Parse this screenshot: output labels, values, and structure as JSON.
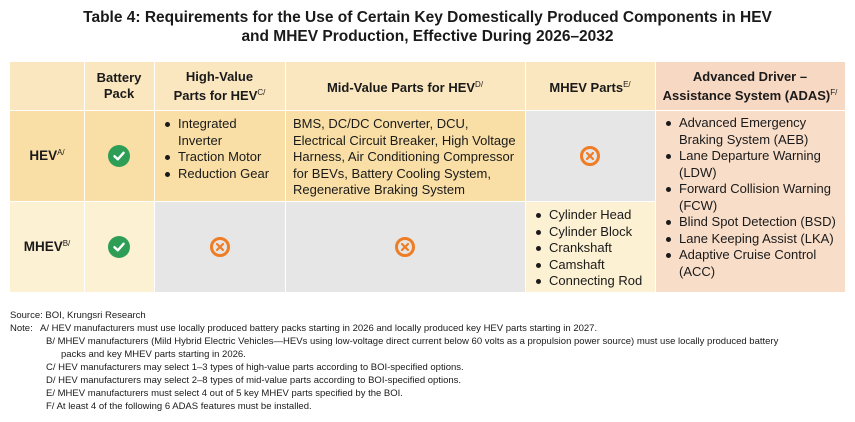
{
  "title": {
    "line1": "Table 4: Requirements for the Use of Certain Key Domestically Produced Components in HEV",
    "line2": "and MHEV Production, Effective During 2026–2032"
  },
  "headers": {
    "battery": "Battery Pack",
    "high_value": "High-Value Parts for HEV",
    "high_value_sup": "C/",
    "mid_value": "Mid-Value Parts for HEV",
    "mid_value_sup": "D/",
    "mhev_parts": "MHEV Parts",
    "mhev_parts_sup": "E/",
    "adas_line1": "Advanced Driver –",
    "adas_line2": "Assistance System (ADAS)",
    "adas_sup": "F/"
  },
  "rows": {
    "hev": {
      "label": "HEV",
      "sup": "A/"
    },
    "mhev": {
      "label": "MHEV",
      "sup": "B/"
    }
  },
  "cells": {
    "hev_high_value": [
      "Integrated Inverter",
      "Traction Motor",
      "Reduction Gear"
    ],
    "hev_mid_value": "BMS, DC/DC Converter, DCU, Electrical Circuit Breaker, High Voltage Harness, Air Conditioning Compressor for BEVs, Battery Cooling System, Regenerative Braking System",
    "mhev_parts": [
      "Cylinder Head",
      "Cylinder Block",
      "Crankshaft",
      "Camshaft",
      "Connecting Rod"
    ],
    "adas": [
      "Advanced Emergency Braking System (AEB)",
      "Lane Departure Warning (LDW)",
      "Forward Collision Warning (FCW)",
      "Blind Spot Detection (BSD)",
      "Lane Keeping Assist (LKA)",
      "Adaptive Cruise Control (ACC)"
    ]
  },
  "icons": {
    "check": "check-circle-icon",
    "cross": "x-circle-icon"
  },
  "colors": {
    "header_fill": "#fbe7bf",
    "hev_fill": "#f9dfa6",
    "mhev_fill": "#fdf1d3",
    "adas_fill": "#f8ddc9",
    "adas_header_fill": "#f7d8c3",
    "mhev_gray": "#e6e6e6",
    "check_green": "#2e9e56",
    "cross_orange": "#ee7d26"
  },
  "source": "Source: BOI, Krungsri Research",
  "notes_label": "Note:",
  "notes": [
    {
      "key": "A/",
      "text": "HEV manufacturers must use locally produced battery packs starting in 2026 and locally produced key HEV parts starting in 2027."
    },
    {
      "key": "B/",
      "text": "MHEV manufacturers (Mild Hybrid Electric Vehicles—HEVs using low-voltage direct current below 60 volts as a propulsion power source) must use locally produced battery",
      "cont": "packs and key MHEV parts starting in 2026."
    },
    {
      "key": "C/",
      "text": "HEV manufacturers may select 1–3 types of high-value parts according to BOI-specified options."
    },
    {
      "key": "D/",
      "text": "HEV manufacturers may select 2–8 types of mid-value parts according to BOI-specified options."
    },
    {
      "key": "E/",
      "text": "MHEV manufacturers must select 4 out of 5 key MHEV parts specified by the BOI."
    },
    {
      "key": "F/",
      "text": "At least 4 of the following 6 ADAS features must be installed."
    }
  ]
}
